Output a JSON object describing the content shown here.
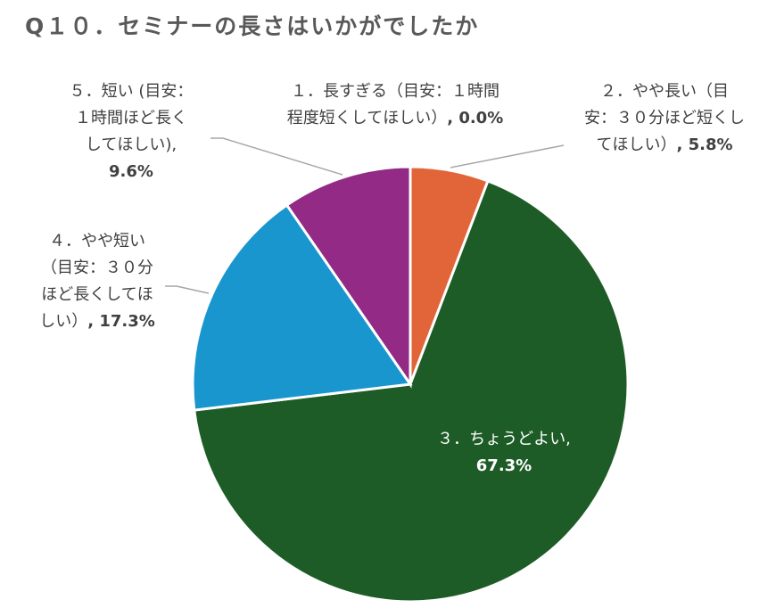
{
  "title": "Q１０．セミナーの長さはいかがでしたか",
  "chart_data": {
    "type": "pie",
    "title": "Q１０．セミナーの長さはいかがでしたか",
    "categories": [
      "１．長すぎる（目安：１時間程度短くしてほしい）",
      "２．やや長い（目安：３０分ほど短くしてほしい）",
      "３．ちょうどよい",
      "４．やや短い（目安：３０分ほど長くしてほしい）",
      "５．短い (目安：１時間ほど長くしてほしい)"
    ],
    "values": [
      0.0,
      5.8,
      67.3,
      17.3,
      9.6
    ],
    "colors": [
      "#7f7f7f",
      "#e2653a",
      "#1e5c27",
      "#1a96cf",
      "#922a86"
    ],
    "slice_labels": [
      {
        "lines": [
          "１．長すぎる（目安：１時間",
          "程度短くしてほしい）"
        ],
        "value": ", 0.0%"
      },
      {
        "lines": [
          "２．やや長い（目",
          "安：３０分ほど短くし",
          "てほしい）"
        ],
        "value": ", 5.8%"
      },
      {
        "lines": [
          "３．ちょうどよい,"
        ],
        "value": "67.3%"
      },
      {
        "lines": [
          "４．やや短い",
          "（目安：３０分",
          "ほど長くしてほ",
          "しい）"
        ],
        "value": ", 17.3%"
      },
      {
        "lines": [
          "５．短い (目安：",
          "１時間ほど長く",
          "してほしい),"
        ],
        "value": "9.6%"
      }
    ]
  }
}
